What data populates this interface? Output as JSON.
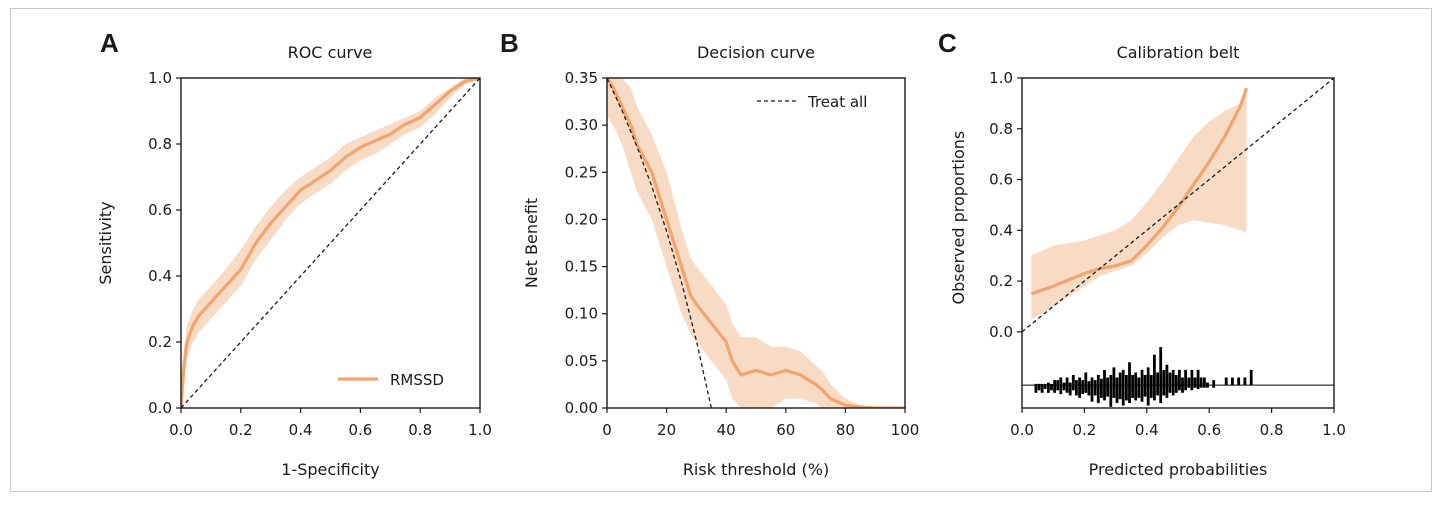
{
  "colors": {
    "curve": "#f0a46e",
    "band": "#f6cfb2",
    "reference": "#1a1a1a",
    "axes": "#1a1a1a",
    "hist": "#000000"
  },
  "chart_data": [
    {
      "type": "line",
      "panel": "A",
      "title": "ROC curve",
      "xlabel": "1-Specificity",
      "ylabel": "Sensitivity",
      "xlim": [
        0,
        1
      ],
      "ylim": [
        0,
        1
      ],
      "xticks": [
        "0.0",
        "0.2",
        "0.4",
        "0.6",
        "0.8",
        "1.0"
      ],
      "yticks": [
        "0.0",
        "0.2",
        "0.4",
        "0.6",
        "0.8",
        "1.0"
      ],
      "legend": {
        "position": "bottom-right",
        "entries": [
          "RMSSD"
        ]
      },
      "grid": false,
      "series": [
        {
          "name": "RMSSD",
          "x": [
            0,
            0.01,
            0.02,
            0.04,
            0.06,
            0.1,
            0.15,
            0.2,
            0.25,
            0.3,
            0.35,
            0.4,
            0.45,
            0.5,
            0.55,
            0.6,
            0.65,
            0.7,
            0.75,
            0.8,
            0.85,
            0.9,
            0.95,
            1.0
          ],
          "y": [
            0,
            0.13,
            0.2,
            0.25,
            0.28,
            0.32,
            0.37,
            0.42,
            0.5,
            0.56,
            0.61,
            0.66,
            0.69,
            0.72,
            0.76,
            0.79,
            0.81,
            0.83,
            0.86,
            0.88,
            0.92,
            0.96,
            0.99,
            1.0
          ],
          "lower": [
            0,
            0.08,
            0.15,
            0.2,
            0.23,
            0.27,
            0.32,
            0.37,
            0.45,
            0.51,
            0.57,
            0.62,
            0.65,
            0.68,
            0.72,
            0.75,
            0.77,
            0.8,
            0.83,
            0.85,
            0.89,
            0.94,
            0.98,
            1.0
          ],
          "upper": [
            0,
            0.18,
            0.25,
            0.3,
            0.33,
            0.37,
            0.42,
            0.48,
            0.55,
            0.61,
            0.66,
            0.7,
            0.73,
            0.76,
            0.8,
            0.82,
            0.84,
            0.86,
            0.88,
            0.9,
            0.94,
            0.97,
            1.0,
            1.0
          ]
        },
        {
          "x": [
            0,
            1
          ],
          "y": [
            0,
            1
          ],
          "style": "dashed"
        }
      ]
    },
    {
      "type": "line",
      "panel": "B",
      "title": "Decision curve",
      "xlabel": "Risk threshold (%)",
      "ylabel": "Net Benefit",
      "xlim": [
        0,
        100
      ],
      "ylim": [
        0,
        0.35
      ],
      "xticks": [
        "0",
        "20",
        "40",
        "60",
        "80",
        "100"
      ],
      "yticks": [
        "0.00",
        "0.05",
        "0.10",
        "0.15",
        "0.20",
        "0.25",
        "0.30",
        "0.35"
      ],
      "legend": {
        "position": "top-right",
        "entries": [
          "Treat all"
        ]
      },
      "grid": false,
      "series": [
        {
          "x": [
            0,
            2,
            5,
            8,
            10,
            15,
            20,
            25,
            28,
            30,
            35,
            40,
            42,
            45,
            50,
            55,
            60,
            65,
            70,
            72,
            75,
            80,
            85,
            90,
            100
          ],
          "y": [
            0.35,
            0.34,
            0.32,
            0.3,
            0.28,
            0.25,
            0.2,
            0.15,
            0.12,
            0.11,
            0.09,
            0.07,
            0.05,
            0.035,
            0.04,
            0.035,
            0.04,
            0.035,
            0.025,
            0.02,
            0.01,
            0.003,
            0.001,
            0,
            0
          ],
          "lower": [
            0.31,
            0.3,
            0.28,
            0.25,
            0.23,
            0.2,
            0.15,
            0.1,
            0.08,
            0.07,
            0.05,
            0.03,
            0.01,
            0,
            0,
            0,
            0.01,
            0.01,
            0.005,
            0,
            0,
            0,
            0,
            0,
            0
          ],
          "upper": [
            0.35,
            0.35,
            0.35,
            0.34,
            0.32,
            0.29,
            0.25,
            0.19,
            0.16,
            0.15,
            0.13,
            0.11,
            0.09,
            0.075,
            0.075,
            0.065,
            0.065,
            0.06,
            0.045,
            0.04,
            0.025,
            0.01,
            0.003,
            0.001,
            0
          ]
        },
        {
          "name": "Treat all",
          "x": [
            0,
            5,
            10,
            15,
            20,
            25,
            30,
            35
          ],
          "y": [
            0.35,
            0.3158,
            0.2778,
            0.2353,
            0.1875,
            0.1333,
            0.0714,
            0
          ],
          "style": "dashed"
        }
      ]
    },
    {
      "type": "line",
      "panel": "C",
      "title": "Calibration belt",
      "xlabel": "Predicted probabilities",
      "ylabel": "Observed proportions",
      "xlim": [
        0,
        1
      ],
      "ylim": [
        -0.3,
        1.0
      ],
      "xticks": [
        "0.0",
        "0.2",
        "0.4",
        "0.6",
        "0.8",
        "1.0"
      ],
      "yticks": [
        "0.0",
        "0.2",
        "0.4",
        "0.6",
        "0.8",
        "1.0"
      ],
      "grid": false,
      "series": [
        {
          "x": [
            0.03,
            0.1,
            0.2,
            0.25,
            0.3,
            0.35,
            0.4,
            0.45,
            0.5,
            0.55,
            0.6,
            0.65,
            0.7,
            0.72
          ],
          "y": [
            0.15,
            0.18,
            0.23,
            0.25,
            0.26,
            0.28,
            0.34,
            0.41,
            0.49,
            0.58,
            0.67,
            0.77,
            0.89,
            0.96
          ],
          "lower": [
            0.05,
            0.1,
            0.18,
            0.22,
            0.24,
            0.26,
            0.31,
            0.37,
            0.42,
            0.44,
            0.43,
            0.42,
            0.4,
            0.39
          ],
          "upper": [
            0.3,
            0.34,
            0.36,
            0.38,
            0.4,
            0.44,
            0.51,
            0.59,
            0.68,
            0.77,
            0.83,
            0.87,
            0.9,
            0.96
          ]
        },
        {
          "x": [
            0,
            1
          ],
          "y": [
            0,
            1
          ],
          "style": "dashed"
        }
      ],
      "histogram": {
        "baseline": -0.21,
        "bins": [
          [
            0.04,
            0.005,
            -0.03
          ],
          [
            0.05,
            0.005,
            -0.02
          ],
          [
            0.06,
            0.005,
            -0.03
          ],
          [
            0.07,
            0.005,
            -0.015
          ],
          [
            0.08,
            0.01,
            -0.03
          ],
          [
            0.09,
            0.005,
            -0.02
          ],
          [
            0.1,
            0.02,
            -0.03
          ],
          [
            0.11,
            0.02,
            -0.02
          ],
          [
            0.12,
            0.03,
            -0.035
          ],
          [
            0.13,
            0.01,
            -0.02
          ],
          [
            0.14,
            0.03,
            -0.03
          ],
          [
            0.15,
            0.01,
            -0.04
          ],
          [
            0.16,
            0.04,
            -0.02
          ],
          [
            0.17,
            0.02,
            -0.04
          ],
          [
            0.18,
            0.03,
            -0.05
          ],
          [
            0.19,
            0.02,
            -0.035
          ],
          [
            0.2,
            0.05,
            -0.03
          ],
          [
            0.21,
            0.015,
            -0.04
          ],
          [
            0.22,
            0.03,
            -0.065
          ],
          [
            0.23,
            0.02,
            -0.04
          ],
          [
            0.24,
            0.04,
            -0.07
          ],
          [
            0.25,
            0.025,
            -0.05
          ],
          [
            0.26,
            0.06,
            -0.06
          ],
          [
            0.27,
            0.03,
            -0.045
          ],
          [
            0.28,
            0.04,
            -0.085
          ],
          [
            0.29,
            0.07,
            -0.05
          ],
          [
            0.3,
            0.03,
            -0.07
          ],
          [
            0.31,
            0.05,
            -0.055
          ],
          [
            0.32,
            0.06,
            -0.08
          ],
          [
            0.33,
            0.04,
            -0.06
          ],
          [
            0.34,
            0.09,
            -0.07
          ],
          [
            0.35,
            0.04,
            -0.05
          ],
          [
            0.36,
            0.05,
            -0.06
          ],
          [
            0.37,
            0.03,
            -0.05
          ],
          [
            0.38,
            0.06,
            -0.065
          ],
          [
            0.39,
            0.04,
            -0.045
          ],
          [
            0.4,
            0.07,
            -0.08
          ],
          [
            0.41,
            0.04,
            -0.05
          ],
          [
            0.42,
            0.12,
            -0.06
          ],
          [
            0.43,
            0.05,
            -0.04
          ],
          [
            0.44,
            0.15,
            -0.07
          ],
          [
            0.45,
            0.06,
            -0.04
          ],
          [
            0.46,
            0.08,
            -0.05
          ],
          [
            0.47,
            0.05,
            -0.03
          ],
          [
            0.48,
            0.06,
            -0.04
          ],
          [
            0.49,
            0.04,
            -0.03
          ],
          [
            0.5,
            0.06,
            -0.02
          ],
          [
            0.51,
            0.03,
            -0.03
          ],
          [
            0.52,
            0.06,
            -0.02
          ],
          [
            0.53,
            0.03,
            -0.01
          ],
          [
            0.54,
            0.06,
            -0.02
          ],
          [
            0.55,
            0.03,
            -0.01
          ],
          [
            0.56,
            0.06,
            -0.015
          ],
          [
            0.57,
            0.03,
            -0.01
          ],
          [
            0.58,
            0.03,
            -0.01
          ],
          [
            0.59,
            0.01,
            -0.01
          ],
          [
            0.61,
            0.02,
            -0.01
          ],
          [
            0.65,
            0.03,
            0
          ],
          [
            0.67,
            0.03,
            0
          ],
          [
            0.69,
            0.03,
            0
          ],
          [
            0.71,
            0.03,
            0
          ],
          [
            0.73,
            0.06,
            0
          ]
        ]
      }
    }
  ],
  "panels": [
    {
      "letter": "A",
      "title": "ROC curve"
    },
    {
      "letter": "B",
      "title": "Decision curve"
    },
    {
      "letter": "C",
      "title": "Calibration belt"
    }
  ]
}
